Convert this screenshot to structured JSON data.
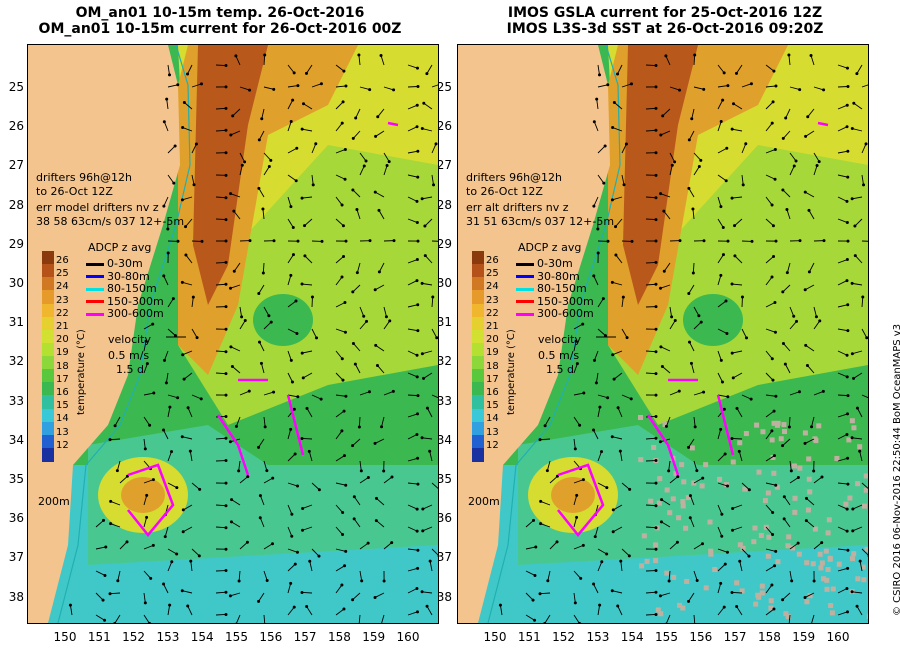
{
  "titles": {
    "left_line1": "OM_an01 10-15m temp. 26-Oct-2016",
    "left_line2": "OM_an01 10-15m current for 26-Oct-2016 00Z",
    "right_line1": "IMOS GSLA current for 25-Oct-2016 12Z",
    "right_line2": "IMOS L3S-3d SST at 26-Oct-2016 09:20Z"
  },
  "axes": {
    "y_ticks": [
      "25",
      "26",
      "27",
      "28",
      "29",
      "30",
      "31",
      "32",
      "33",
      "34",
      "35",
      "36",
      "37",
      "38"
    ],
    "x_ticks": [
      "150",
      "151",
      "152",
      "153",
      "154",
      "155",
      "156",
      "157",
      "158",
      "159",
      "160"
    ]
  },
  "left_panel": {
    "drifters_line1": "drifters 96h@12h",
    "drifters_line2": "to 26-Oct 12Z",
    "err_line1": "err model drifters nv z",
    "err_line2": "38 58 63cm/s 037 12+-5m"
  },
  "right_panel": {
    "drifters_line1": "drifters 96h@12h",
    "drifters_line2": "to 26-Oct 12Z",
    "err_line1": "err alt drifters nv z",
    "err_line2": "31 51 63cm/s 037 12+-5m"
  },
  "legend": {
    "title": "ADCP z avg",
    "items": [
      {
        "label": "0-30m",
        "color": "#000000"
      },
      {
        "label": "30-80m",
        "color": "#0000ff"
      },
      {
        "label": "80-150m",
        "color": "#00e0e0"
      },
      {
        "label": "150-300m",
        "color": "#ff0000"
      },
      {
        "label": "300-600m",
        "color": "#ff00ff"
      }
    ],
    "velocity_label": "velocity",
    "velocity_value": "0.5 m/s",
    "velocity_time": "1.5 d",
    "contour_label": "200m"
  },
  "colorbar": {
    "ticks": [
      "26",
      "25",
      "24",
      "23",
      "22",
      "21",
      "20",
      "19",
      "18",
      "17",
      "16",
      "15",
      "14",
      "13",
      "12"
    ],
    "label": "temperature (°C)",
    "colors": [
      "#8b3a0e",
      "#b4521a",
      "#d07822",
      "#e69a2a",
      "#f0b62e",
      "#e6d030",
      "#d2e032",
      "#b4e032",
      "#8cd83a",
      "#5ac83c",
      "#3cb850",
      "#30c0a0",
      "#38c8d8",
      "#30a0e0",
      "#2060d0",
      "#1830a0"
    ]
  },
  "copyright": "© CSIRO 2016  06-Nov-2016 22:50:44 BoM OceanMAPS v3",
  "colors": {
    "land": "#f4c48e",
    "drifter": "#ff00ff",
    "contour": "#20b0b0"
  }
}
